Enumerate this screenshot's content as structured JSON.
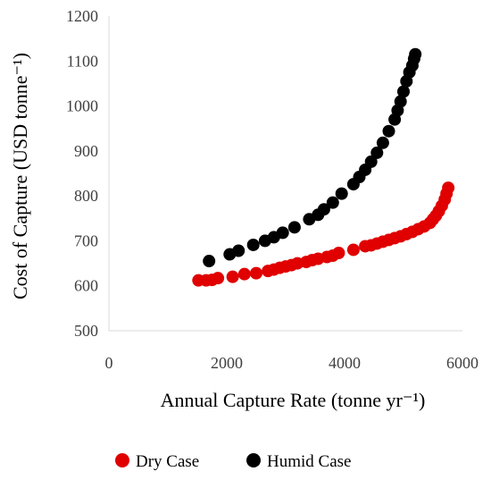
{
  "chart_data": {
    "type": "scatter",
    "title": "",
    "xlabel": "Annual Capture Rate (tonne yr⁻¹)",
    "ylabel": "Cost of Capture (USD tonne⁻¹)",
    "xlim": [
      0,
      6000
    ],
    "ylim": [
      500,
      1200
    ],
    "xticks": [
      "0",
      "2000",
      "4000",
      "6000"
    ],
    "yticks": [
      "500",
      "600",
      "700",
      "800",
      "900",
      "1000",
      "1100",
      "1200"
    ],
    "xtick_values": [
      0,
      2000,
      4000,
      6000
    ],
    "ytick_values": [
      500,
      600,
      700,
      800,
      900,
      1000,
      1100,
      1200
    ],
    "grid": false,
    "legend_position": "bottom",
    "series": [
      {
        "name": "Dry Case",
        "color": "#e00000",
        "points": [
          [
            1520,
            612
          ],
          [
            1650,
            612
          ],
          [
            1750,
            613
          ],
          [
            1850,
            617
          ],
          [
            2100,
            620
          ],
          [
            2300,
            626
          ],
          [
            2500,
            628
          ],
          [
            2700,
            633
          ],
          [
            2800,
            636
          ],
          [
            2900,
            640
          ],
          [
            3000,
            643
          ],
          [
            3100,
            646
          ],
          [
            3200,
            650
          ],
          [
            3350,
            653
          ],
          [
            3450,
            657
          ],
          [
            3550,
            660
          ],
          [
            3700,
            664
          ],
          [
            3800,
            667
          ],
          [
            3900,
            673
          ],
          [
            4150,
            680
          ],
          [
            4350,
            688
          ],
          [
            4450,
            690
          ],
          [
            4550,
            694
          ],
          [
            4650,
            698
          ],
          [
            4750,
            702
          ],
          [
            4850,
            706
          ],
          [
            4950,
            710
          ],
          [
            5050,
            715
          ],
          [
            5150,
            720
          ],
          [
            5250,
            726
          ],
          [
            5350,
            732
          ],
          [
            5450,
            740
          ],
          [
            5500,
            748
          ],
          [
            5550,
            756
          ],
          [
            5600,
            766
          ],
          [
            5650,
            778
          ],
          [
            5700,
            792
          ],
          [
            5730,
            805
          ],
          [
            5760,
            818
          ]
        ]
      },
      {
        "name": "Humid Case",
        "color": "#000000",
        "points": [
          [
            1700,
            655
          ],
          [
            2050,
            670
          ],
          [
            2200,
            678
          ],
          [
            2450,
            691
          ],
          [
            2650,
            700
          ],
          [
            2800,
            708
          ],
          [
            2950,
            718
          ],
          [
            3150,
            730
          ],
          [
            3400,
            748
          ],
          [
            3550,
            758
          ],
          [
            3650,
            770
          ],
          [
            3800,
            785
          ],
          [
            3950,
            805
          ],
          [
            4150,
            826
          ],
          [
            4250,
            842
          ],
          [
            4350,
            858
          ],
          [
            4450,
            876
          ],
          [
            4550,
            896
          ],
          [
            4650,
            918
          ],
          [
            4750,
            944
          ],
          [
            4850,
            970
          ],
          [
            4900,
            990
          ],
          [
            4950,
            1010
          ],
          [
            5000,
            1032
          ],
          [
            5050,
            1055
          ],
          [
            5100,
            1075
          ],
          [
            5150,
            1090
          ],
          [
            5180,
            1105
          ],
          [
            5200,
            1115
          ]
        ]
      }
    ]
  }
}
